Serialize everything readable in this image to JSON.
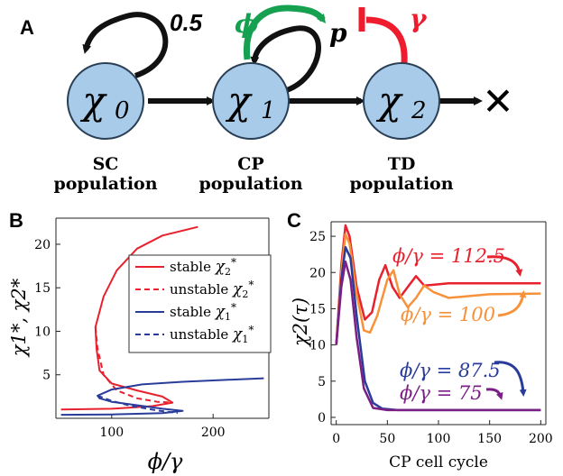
{
  "panel_a": {
    "label": "A",
    "nodes": [
      {
        "symbol": "χ",
        "sub": "0",
        "caption_line1": "SC",
        "caption_line2": "population"
      },
      {
        "symbol": "χ",
        "sub": "1",
        "caption_line1": "CP",
        "caption_line2": "population"
      },
      {
        "symbol": "χ",
        "sub": "2",
        "caption_line1": "TD",
        "caption_line2": "population"
      }
    ],
    "self_renewal_rate": "0.5",
    "phi_label": "ϕ",
    "p_label": "p",
    "gamma_label": "γ",
    "death_symbol": "✕",
    "colors": {
      "node_fill": "#a8cbe9",
      "node_stroke": "#2a3f55",
      "arrow": "#111111",
      "phi_arrow": "#15a150",
      "gamma_inhibit": "#ee1c2e"
    }
  },
  "panel_b": {
    "label": "B",
    "legend": [
      {
        "text_main": "stable ",
        "sym": "χ",
        "sub": "2",
        "sup": "*",
        "color": "#e8212e",
        "dash": false
      },
      {
        "text_main": "unstable ",
        "sym": "χ",
        "sub": "2",
        "sup": "*",
        "color": "#e8212e",
        "dash": true
      },
      {
        "text_main": "stable ",
        "sym": "χ",
        "sub": "1",
        "sup": "*",
        "color": "#2a3c9a",
        "dash": false
      },
      {
        "text_main": "unstable ",
        "sym": "χ",
        "sub": "1",
        "sup": "*",
        "color": "#2a3c9a",
        "dash": true
      }
    ]
  },
  "panel_c": {
    "label": "C",
    "annotations": [
      {
        "text": "ϕ/γ = 112.5",
        "color": "#e8212e"
      },
      {
        "text": "ϕ/γ = 100",
        "color": "#f7923a"
      },
      {
        "text": "ϕ/γ = 87.5",
        "color": "#2a3c9a"
      },
      {
        "text": "ϕ/γ = 75",
        "color": "#7b1f84"
      }
    ]
  },
  "chart_data": [
    {
      "type": "line",
      "title": "",
      "xlabel": "ϕ/γ",
      "ylabel": "χ1*, χ2*",
      "xlim": [
        45,
        255
      ],
      "ylim": [
        0,
        23
      ],
      "x_ticks": [
        100,
        200
      ],
      "y_ticks": [
        5,
        10,
        15,
        20
      ],
      "series": [
        {
          "name": "stable χ2*",
          "color": "#e8212e",
          "dash": false,
          "points": [
            [
              50,
              1.0
            ],
            [
              100,
              1.1
            ],
            [
              140,
              1.4
            ],
            [
              160,
              1.8
            ],
            [
              150,
              2.5
            ],
            [
              125,
              3.2
            ],
            [
              100,
              4.0
            ],
            [
              88,
              5.5
            ],
            [
              85,
              8
            ],
            [
              84,
              10.5
            ],
            [
              92,
              14
            ],
            [
              105,
              17
            ],
            [
              125,
              19.5
            ],
            [
              150,
              21
            ],
            [
              185,
              22
            ]
          ]
        },
        {
          "name": "unstable χ2*",
          "color": "#e8212e",
          "dash": true,
          "points": [
            [
              84,
              10.5
            ],
            [
              86,
              8
            ],
            [
              92,
              5
            ],
            [
              105,
              3.2
            ],
            [
              125,
              2.3
            ],
            [
              145,
              1.9
            ],
            [
              160,
              1.8
            ]
          ]
        },
        {
          "name": "stable χ1*",
          "color": "#2a3c9a",
          "dash": false,
          "points": [
            [
              50,
              0.4
            ],
            [
              100,
              0.45
            ],
            [
              150,
              0.6
            ],
            [
              170,
              0.85
            ],
            [
              150,
              1.1
            ],
            [
              125,
              1.5
            ],
            [
              100,
              1.9
            ],
            [
              88,
              2.3
            ],
            [
              86,
              2.6
            ],
            [
              100,
              3.3
            ],
            [
              130,
              3.9
            ],
            [
              170,
              4.2
            ],
            [
              210,
              4.4
            ],
            [
              250,
              4.6
            ]
          ]
        },
        {
          "name": "unstable χ1*",
          "color": "#2a3c9a",
          "dash": true,
          "points": [
            [
              86,
              2.6
            ],
            [
              100,
              2.0
            ],
            [
              120,
              1.4
            ],
            [
              145,
              0.9
            ],
            [
              165,
              0.6
            ]
          ]
        }
      ]
    },
    {
      "type": "line",
      "title": "",
      "xlabel": "CP cell cycle",
      "ylabel": "χ2(τ)",
      "xlim": [
        -5,
        205
      ],
      "ylim": [
        -1,
        27
      ],
      "x_ticks": [
        0,
        50,
        100,
        150,
        200
      ],
      "y_ticks": [
        0,
        5,
        10,
        15,
        20,
        25
      ],
      "series": [
        {
          "name": "ϕ/γ = 112.5",
          "color": "#e8212e",
          "points": [
            [
              0,
              10
            ],
            [
              5,
              21
            ],
            [
              9,
              26.5
            ],
            [
              13,
              25
            ],
            [
              20,
              18
            ],
            [
              28,
              13.5
            ],
            [
              35,
              14.5
            ],
            [
              42,
              19
            ],
            [
              48,
              21
            ],
            [
              55,
              18
            ],
            [
              62,
              16.5
            ],
            [
              70,
              18
            ],
            [
              78,
              19.5
            ],
            [
              86,
              18.2
            ],
            [
              95,
              18.3
            ],
            [
              110,
              18.5
            ],
            [
              140,
              18.5
            ],
            [
              200,
              18.5
            ]
          ]
        },
        {
          "name": "ϕ/γ = 100",
          "color": "#f7923a",
          "points": [
            [
              0,
              10
            ],
            [
              5,
              20
            ],
            [
              9,
              25.3
            ],
            [
              13,
              24
            ],
            [
              20,
              17
            ],
            [
              27,
              12
            ],
            [
              33,
              11.7
            ],
            [
              40,
              14
            ],
            [
              50,
              19
            ],
            [
              56,
              20.3
            ],
            [
              62,
              17
            ],
            [
              70,
              15.2
            ],
            [
              78,
              16.5
            ],
            [
              86,
              18.2
            ],
            [
              95,
              17.3
            ],
            [
              110,
              16.5
            ],
            [
              150,
              17
            ],
            [
              200,
              17.1
            ]
          ]
        },
        {
          "name": "ϕ/γ = 87.5",
          "color": "#2a3c9a",
          "points": [
            [
              0,
              10
            ],
            [
              5,
              19
            ],
            [
              9,
              23.5
            ],
            [
              14,
              22
            ],
            [
              20,
              14
            ],
            [
              28,
              5
            ],
            [
              36,
              2
            ],
            [
              45,
              1.2
            ],
            [
              60,
              1.0
            ],
            [
              100,
              1.0
            ],
            [
              200,
              1.0
            ]
          ]
        },
        {
          "name": "ϕ/γ = 75",
          "color": "#7b1f84",
          "points": [
            [
              0,
              10
            ],
            [
              5,
              18
            ],
            [
              9,
              21.5
            ],
            [
              14,
              19
            ],
            [
              20,
              11
            ],
            [
              27,
              4
            ],
            [
              36,
              1.3
            ],
            [
              50,
              1.0
            ],
            [
              100,
              1.0
            ],
            [
              200,
              1.0
            ]
          ]
        }
      ]
    }
  ]
}
